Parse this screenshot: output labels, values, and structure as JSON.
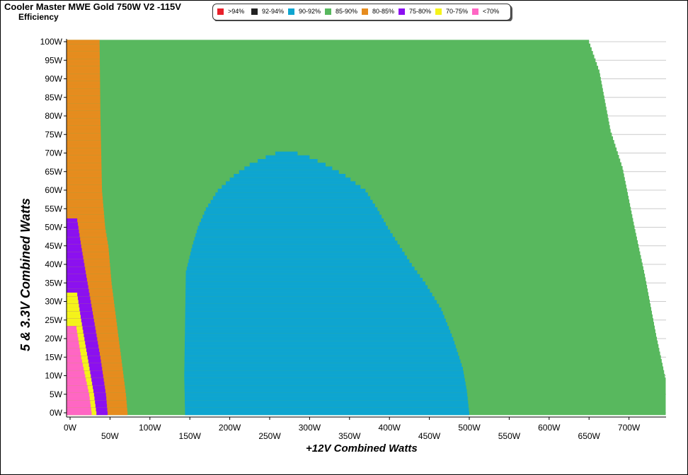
{
  "header": {
    "title": "Cooler Master MWE Gold 750W V2 -115V",
    "subtitle": "Efficiency"
  },
  "chart_data": {
    "type": "heatmap",
    "title": "Cooler Master MWE Gold 750W V2 -115V",
    "subtitle": "Efficiency",
    "xlabel": "+12V Combined Watts",
    "ylabel": "5 & 3.3V Combined Watts",
    "x_ticks": [
      "0W",
      "50W",
      "100W",
      "150W",
      "200W",
      "250W",
      "300W",
      "350W",
      "400W",
      "450W",
      "500W",
      "550W",
      "600W",
      "650W",
      "700W"
    ],
    "y_ticks": [
      "100W",
      "95W",
      "90W",
      "85W",
      "80W",
      "75W",
      "70W",
      "65W",
      "60W",
      "55W",
      "50W",
      "45W",
      "40W",
      "35W",
      "30W",
      "25W",
      "20W",
      "15W",
      "10W",
      "5W",
      "0W"
    ],
    "xlim": [
      0,
      745
    ],
    "ylim": [
      0,
      100
    ],
    "legend": [
      {
        "label": ">94%",
        "color": "#e8202a"
      },
      {
        "label": "92-94%",
        "color": "#222222"
      },
      {
        "label": "90-92%",
        "color": "#0ea5d0"
      },
      {
        "label": "85-90%",
        "color": "#58b85e"
      },
      {
        "label": "80-85%",
        "color": "#e68c1e"
      },
      {
        "label": "75-80%",
        "color": "#8b10f0"
      },
      {
        "label": "70-75%",
        "color": "#f5f31a"
      },
      {
        "label": "<70%",
        "color": "#ff66c4"
      }
    ],
    "legend_position": "top",
    "grid": "horizontal",
    "regions": {
      "green_right_edge": [
        {
          "y": 100,
          "x": 650
        },
        {
          "y": 92,
          "x": 663
        },
        {
          "y": 76,
          "x": 677
        },
        {
          "y": 66,
          "x": 692
        },
        {
          "y": 50,
          "x": 707
        },
        {
          "y": 37,
          "x": 720
        },
        {
          "y": 21,
          "x": 734
        },
        {
          "y": 9,
          "x": 746
        },
        {
          "y": 0,
          "x": 746
        }
      ],
      "blue_left_edge": [
        {
          "y": 70,
          "x": 257
        },
        {
          "y": 69,
          "x": 245
        },
        {
          "y": 67,
          "x": 225
        },
        {
          "y": 64,
          "x": 205
        },
        {
          "y": 60,
          "x": 185
        },
        {
          "y": 55,
          "x": 170
        },
        {
          "y": 50,
          "x": 160
        },
        {
          "y": 45,
          "x": 153
        },
        {
          "y": 38,
          "x": 145
        },
        {
          "y": 10,
          "x": 143
        },
        {
          "y": 0,
          "x": 144
        }
      ],
      "blue_right_edge": [
        {
          "y": 70,
          "x": 285
        },
        {
          "y": 69,
          "x": 300
        },
        {
          "y": 67,
          "x": 320
        },
        {
          "y": 64,
          "x": 345
        },
        {
          "y": 60,
          "x": 370
        },
        {
          "y": 55,
          "x": 385
        },
        {
          "y": 50,
          "x": 398
        },
        {
          "y": 45,
          "x": 413
        },
        {
          "y": 40,
          "x": 428
        },
        {
          "y": 35,
          "x": 445
        },
        {
          "y": 28,
          "x": 465
        },
        {
          "y": 20,
          "x": 480
        },
        {
          "y": 12,
          "x": 492
        },
        {
          "y": 6,
          "x": 497
        },
        {
          "y": 0,
          "x": 500
        }
      ],
      "orange_right_edge": [
        {
          "y": 100,
          "x": 37
        },
        {
          "y": 80,
          "x": 38
        },
        {
          "y": 60,
          "x": 40
        },
        {
          "y": 50,
          "x": 44
        },
        {
          "y": 45,
          "x": 48
        },
        {
          "y": 35,
          "x": 52
        },
        {
          "y": 25,
          "x": 58
        },
        {
          "y": 15,
          "x": 64
        },
        {
          "y": 5,
          "x": 70
        },
        {
          "y": 0,
          "x": 72
        }
      ],
      "purple_right_edge": [
        {
          "y": 52,
          "x": 9
        },
        {
          "y": 45,
          "x": 14
        },
        {
          "y": 35,
          "x": 22
        },
        {
          "y": 25,
          "x": 30
        },
        {
          "y": 15,
          "x": 38
        },
        {
          "y": 5,
          "x": 45
        },
        {
          "y": 0,
          "x": 47
        }
      ],
      "yellow_right_edge": [
        {
          "y": 32,
          "x": 9
        },
        {
          "y": 25,
          "x": 14
        },
        {
          "y": 15,
          "x": 22
        },
        {
          "y": 5,
          "x": 30
        },
        {
          "y": 0,
          "x": 33
        }
      ],
      "pink_right_edge": [
        {
          "y": 23,
          "x": 8
        },
        {
          "y": 15,
          "x": 14
        },
        {
          "y": 5,
          "x": 24
        },
        {
          "y": 0,
          "x": 27
        }
      ]
    }
  }
}
